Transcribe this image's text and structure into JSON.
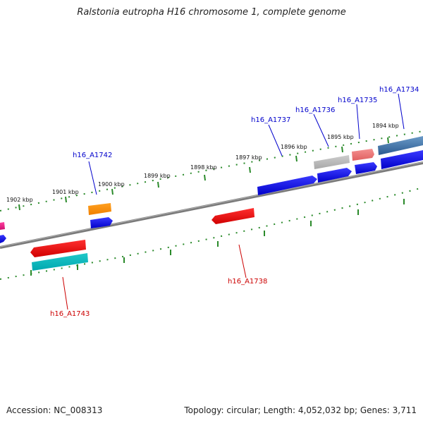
{
  "title": "Ralstonia eutropha H16 chromosome 1, complete genome",
  "footer": {
    "accession": "Accession: NC_008313",
    "stats": "Topology: circular; Length: 4,052,032 bp; Genes: 3,711"
  },
  "scale_labels": [
    "1902 kbp",
    "1901 kbp",
    "1900 kbp",
    "1899 kbp",
    "1898 kbp",
    "1897 kbp",
    "1896 kbp",
    "1895 kbp",
    "1894 kbp"
  ],
  "gene_labels_forward": [
    "h16_A1742",
    "h16_A1737",
    "h16_A1736",
    "h16_A1735",
    "h16_A1734"
  ],
  "gene_labels_reverse": [
    "h16_A1738",
    "h16_A1743"
  ],
  "colors": {
    "forward_label": "#0000cc",
    "reverse_label": "#cc0000",
    "backbone": "#808080",
    "tick": "#2a8a2a"
  }
}
